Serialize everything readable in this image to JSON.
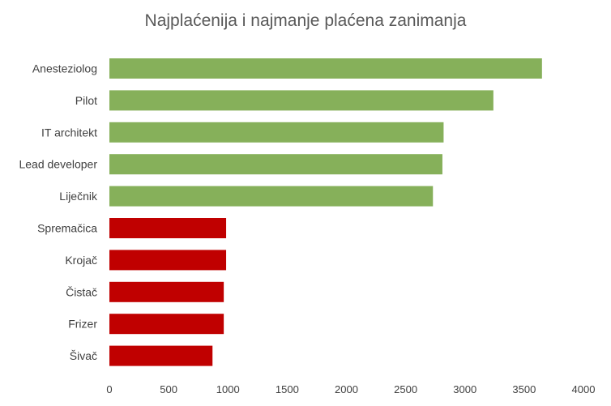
{
  "chart_data": {
    "type": "bar",
    "orientation": "horizontal",
    "title": "Najplaćenija i najmanje plaćena zanimanja",
    "categories": [
      "Anesteziolog",
      "Pilot",
      "IT architekt",
      "Lead developer",
      "Liječnik",
      "Spremačica",
      "Krojač",
      "Čistač",
      "Frizer",
      "Šivač"
    ],
    "values": [
      3650,
      3240,
      2820,
      2810,
      2730,
      985,
      985,
      965,
      965,
      870
    ],
    "bar_colors": [
      "#86b05a",
      "#86b05a",
      "#86b05a",
      "#86b05a",
      "#86b05a",
      "#c00000",
      "#c00000",
      "#c00000",
      "#c00000",
      "#c00000"
    ],
    "xlim": [
      0,
      4000
    ],
    "x_ticks": [
      0,
      500,
      1000,
      1500,
      2000,
      2500,
      3000,
      3500,
      4000
    ],
    "xlabel": "",
    "ylabel": "",
    "grid": false,
    "legend": "none"
  }
}
